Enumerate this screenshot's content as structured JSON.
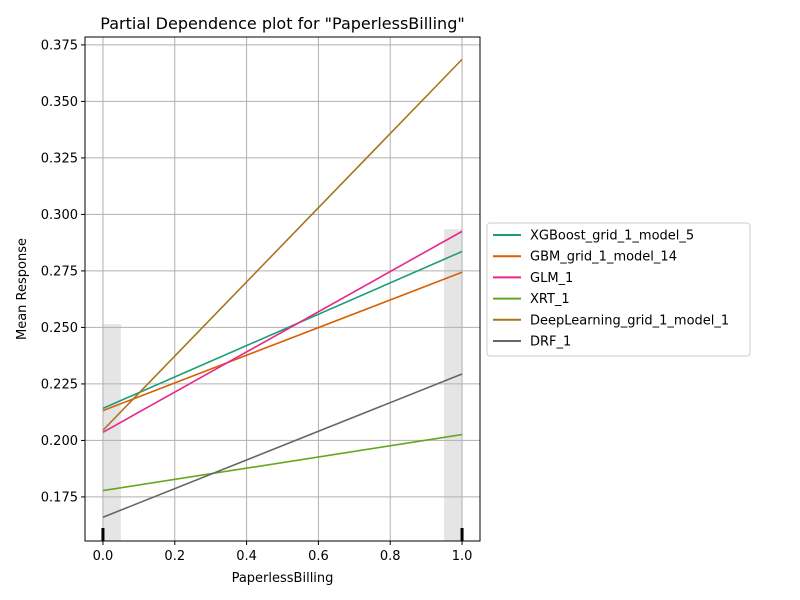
{
  "chart_data": {
    "type": "line",
    "title": "Partial Dependence plot for \"PaperlessBilling\"",
    "xlabel": "PaperlessBilling",
    "ylabel": "Mean Response",
    "xlim": [
      -0.05,
      1.05
    ],
    "ylim": [
      0.1555,
      0.3785
    ],
    "xticks": [
      0.0,
      0.2,
      0.4,
      0.6,
      0.8,
      1.0
    ],
    "xtick_labels": [
      "0.0",
      "0.2",
      "0.4",
      "0.6",
      "0.8",
      "1.0"
    ],
    "yticks": [
      0.175,
      0.2,
      0.225,
      0.25,
      0.275,
      0.3,
      0.325,
      0.35,
      0.375
    ],
    "ytick_labels": [
      "0.175",
      "0.200",
      "0.225",
      "0.250",
      "0.275",
      "0.300",
      "0.325",
      "0.350",
      "0.375"
    ],
    "grid": true,
    "legend_position": "right-outside",
    "x": [
      0,
      1
    ],
    "series": [
      {
        "name": "XGBoost_grid_1_model_5",
        "values": [
          0.2142,
          0.2836
        ],
        "color": "#1b9e77"
      },
      {
        "name": "GBM_grid_1_model_14",
        "values": [
          0.2132,
          0.2744
        ],
        "color": "#d95f02"
      },
      {
        "name": "GLM_1",
        "values": [
          0.2036,
          0.2925
        ],
        "color": "#e7298a"
      },
      {
        "name": "XRT_1",
        "values": [
          0.1778,
          0.2026
        ],
        "color": "#66a61e"
      },
      {
        "name": "DeepLearning_grid_1_model_1",
        "values": [
          0.2045,
          0.3686
        ],
        "color": "#a6761d"
      },
      {
        "name": "DRF_1",
        "values": [
          0.166,
          0.2294
        ],
        "color": "#666666"
      }
    ],
    "histogram": {
      "bins": [
        {
          "x0": 0.0,
          "x1": 0.05,
          "value": 0.2515
        },
        {
          "x0": 0.95,
          "x1": 1.0,
          "value": 0.2935
        }
      ],
      "color": "#e5e5e5"
    },
    "rug": [
      0,
      1
    ]
  }
}
